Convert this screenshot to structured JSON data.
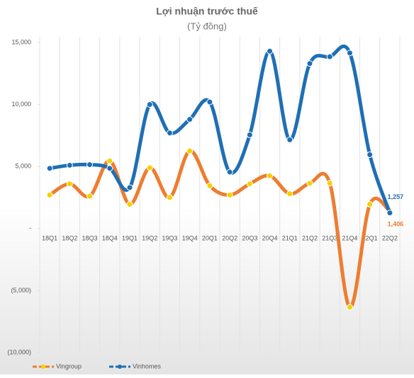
{
  "chart_data": {
    "type": "line",
    "title": "Lợi nhuận trước thuế",
    "subtitle": "(Tỷ đồng)",
    "categories": [
      "18Q1",
      "18Q2",
      "18Q3",
      "18Q4",
      "19Q1",
      "19Q2",
      "19Q3",
      "19Q4",
      "20Q1",
      "20Q2",
      "20Q3",
      "20Q4",
      "21Q1",
      "21Q2",
      "21Q3",
      "21Q4",
      "22Q1",
      "22Q2"
    ],
    "series": [
      {
        "name": "Vingroup",
        "color": "#ed7d31",
        "marker_color": "#f5d000",
        "values": [
          2700,
          3600,
          2600,
          5450,
          1950,
          4900,
          2500,
          6250,
          3450,
          2700,
          3600,
          4250,
          2800,
          3650,
          3650,
          -6350,
          1950,
          1406
        ],
        "value_labels": [
          null,
          null,
          null,
          null,
          null,
          null,
          null,
          null,
          null,
          null,
          null,
          null,
          null,
          null,
          null,
          null,
          null,
          "1,406"
        ]
      },
      {
        "name": "Vinhomes",
        "color": "#1f6fb5",
        "marker_color": "#1f6fb5",
        "values": [
          4850,
          5100,
          5150,
          4850,
          3300,
          10000,
          7700,
          8800,
          10200,
          4550,
          7550,
          14300,
          7150,
          13300,
          13850,
          14150,
          5950,
          1257
        ],
        "value_labels": [
          null,
          null,
          null,
          null,
          null,
          null,
          null,
          null,
          null,
          null,
          null,
          null,
          null,
          null,
          null,
          null,
          null,
          "1,257"
        ]
      }
    ],
    "ylim": [
      -10000,
      15000
    ],
    "yticks": [
      {
        "value": 15000,
        "label": "15,000"
      },
      {
        "value": 10000,
        "label": "10,000"
      },
      {
        "value": 5000,
        "label": "5,000"
      },
      {
        "value": 0,
        "label": "-"
      },
      {
        "value": -5000,
        "label": "(5,000)"
      },
      {
        "value": -10000,
        "label": "(10,000)"
      }
    ],
    "legend": "bottom-left"
  }
}
